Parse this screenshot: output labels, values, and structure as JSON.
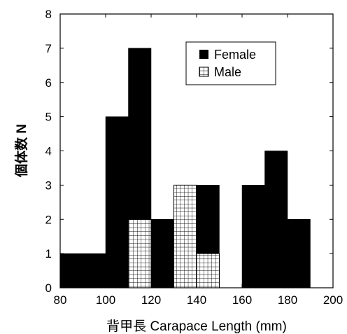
{
  "chart_data": {
    "type": "bar",
    "xlabel": "背甲長 Carapace Length (mm)",
    "ylabel": "個体数 N",
    "xlim": [
      80,
      200
    ],
    "ylim": [
      0,
      8
    ],
    "x_ticks": [
      "80",
      "100",
      "120",
      "140",
      "160",
      "180",
      "200"
    ],
    "y_ticks": [
      "0",
      "1",
      "2",
      "3",
      "4",
      "5",
      "6",
      "7",
      "8"
    ],
    "bin_width": 10,
    "grid": false,
    "legend_position": "top-right",
    "series": [
      {
        "name": "Female",
        "style": "solid",
        "color": "#000000",
        "bins": [
          {
            "x": 80,
            "y": 1
          },
          {
            "x": 90,
            "y": 1
          },
          {
            "x": 100,
            "y": 5
          },
          {
            "x": 110,
            "y": 7
          },
          {
            "x": 120,
            "y": 2
          },
          {
            "x": 130,
            "y": 3
          },
          {
            "x": 140,
            "y": 3
          },
          {
            "x": 160,
            "y": 3
          },
          {
            "x": 170,
            "y": 4
          },
          {
            "x": 180,
            "y": 2
          }
        ]
      },
      {
        "name": "Male",
        "style": "crosshatch",
        "color": "#000000",
        "bins": [
          {
            "x": 110,
            "y": 2
          },
          {
            "x": 130,
            "y": 3
          },
          {
            "x": 140,
            "y": 1
          }
        ]
      }
    ]
  }
}
